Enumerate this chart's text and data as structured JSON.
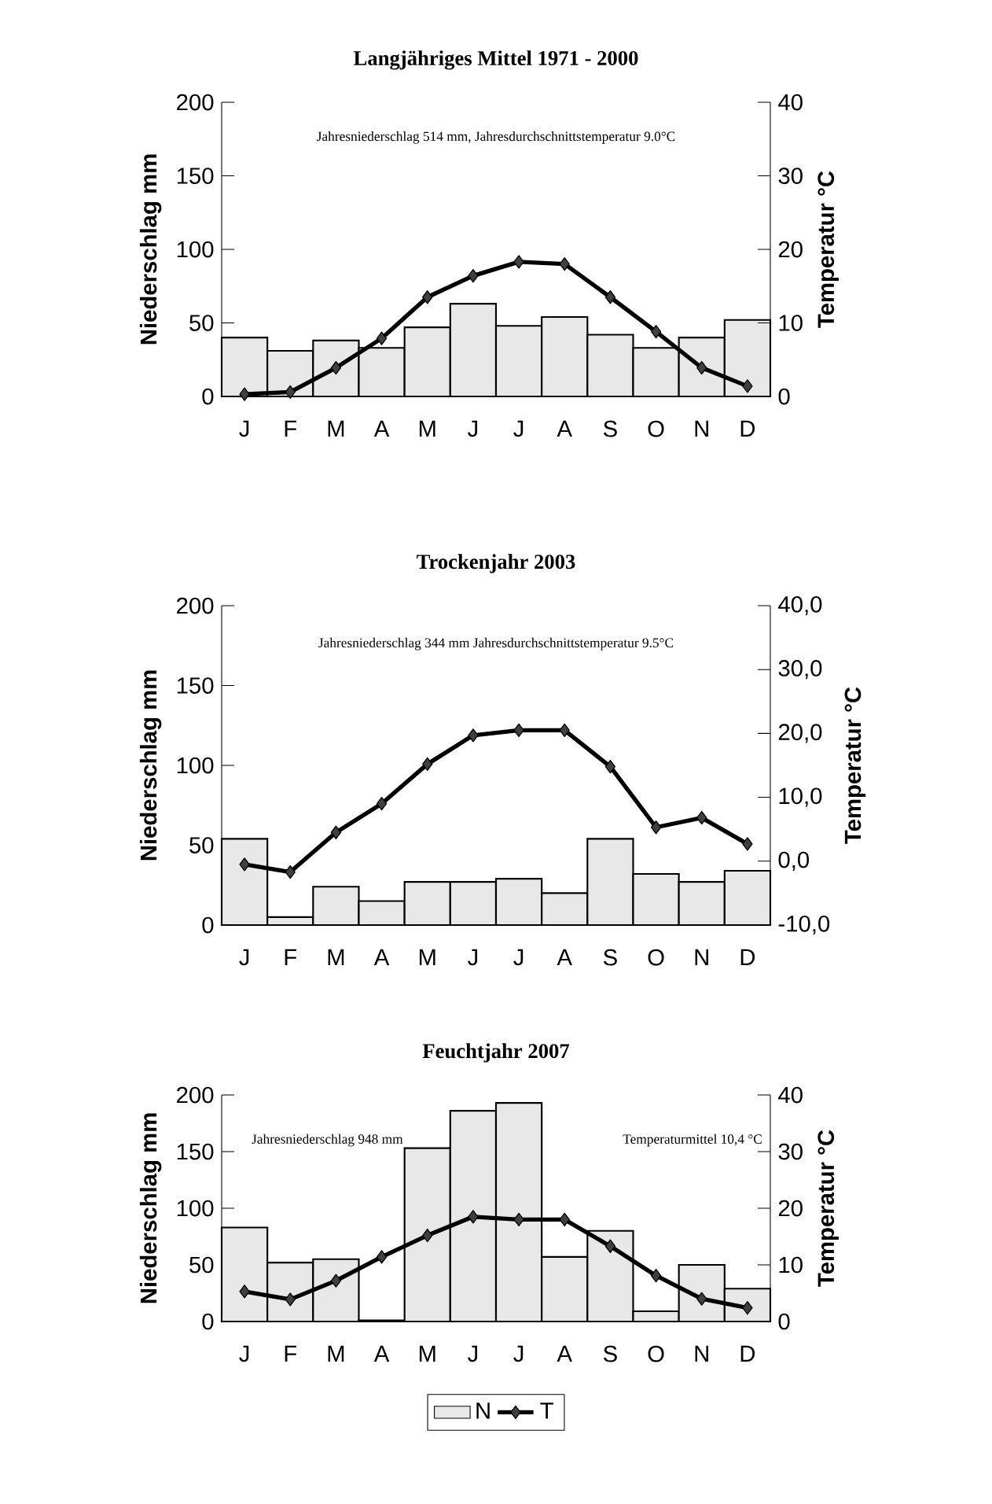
{
  "chart_data": [
    {
      "type": "bar",
      "title": "Langjähriges Mittel 1971 - 2000",
      "ylabel": "Niederschlag mm",
      "y2label": "Temperatur °C",
      "categories": [
        "J",
        "F",
        "M",
        "A",
        "M",
        "J",
        "J",
        "A",
        "S",
        "O",
        "N",
        "D"
      ],
      "series": [
        {
          "color": "#e8e8e8",
          "values": [
            40,
            31,
            38,
            33,
            47,
            63,
            48,
            54,
            42,
            33,
            40,
            52
          ]
        },
        {
          "type": "line",
          "axis": "y2",
          "color": "#000000",
          "values": [
            0.3,
            0.6,
            3.9,
            7.9,
            13.5,
            16.4,
            18.3,
            18.0,
            13.5,
            8.8,
            3.9,
            1.4
          ]
        }
      ],
      "ylim": [
        0,
        200
      ],
      "yticks": [
        0,
        50,
        100,
        150,
        200
      ],
      "y2lim": [
        0,
        40
      ],
      "y2ticks": [
        0,
        10,
        20,
        30,
        40
      ],
      "marker": "diamond",
      "annotations": [
        "Jahresniederschlag 514 mm, Jahresdurchschnittstemperatur 9.0°C"
      ]
    },
    {
      "type": "bar",
      "title": "Trockenjahr 2003",
      "ylabel": "Niederschlag mm",
      "y2label": "Temperatur °C",
      "categories": [
        "J",
        "F",
        "M",
        "A",
        "M",
        "J",
        "J",
        "A",
        "S",
        "O",
        "N",
        "D"
      ],
      "series": [
        {
          "color": "#e8e8e8",
          "values": [
            54,
            5,
            24,
            15,
            27,
            27,
            29,
            20,
            54,
            32,
            27,
            34
          ]
        },
        {
          "type": "line",
          "axis": "y2",
          "color": "#000000",
          "values": [
            -0.5,
            -1.7,
            4.5,
            9.0,
            15.2,
            19.7,
            20.5,
            20.5,
            14.8,
            5.3,
            6.8,
            2.7
          ]
        }
      ],
      "ylim": [
        0,
        200
      ],
      "yticks": [
        0,
        50,
        100,
        150,
        200
      ],
      "y2lim": [
        -10,
        40
      ],
      "y2ticks": [
        {
          "value": -10,
          "label": "-10,0"
        },
        {
          "value": 0,
          "label": "0,0"
        },
        {
          "value": 10,
          "label": "10,0"
        },
        {
          "value": 20,
          "label": "20,0"
        },
        {
          "value": 30,
          "label": "30,0"
        },
        {
          "value": 40,
          "label": "40,0"
        }
      ],
      "marker": "diamond",
      "annotations": [
        "Jahresniederschlag 344 mm Jahresdurchschnittstemperatur 9.5°C"
      ]
    },
    {
      "type": "bar",
      "title": "Feuchtjahr 2007",
      "ylabel": "Niederschlag mm",
      "y2label": "Temperatur °C",
      "categories": [
        "J",
        "F",
        "M",
        "A",
        "M",
        "J",
        "J",
        "A",
        "S",
        "O",
        "N",
        "D"
      ],
      "series": [
        {
          "name": "N",
          "color": "#e8e8e8",
          "values": [
            83,
            52,
            55,
            1,
            153,
            186,
            193,
            57,
            80,
            9,
            50,
            29
          ]
        },
        {
          "type": "line",
          "name": "T",
          "axis": "y2",
          "color": "#000000",
          "values": [
            5.3,
            3.9,
            7.2,
            11.4,
            15.2,
            18.5,
            18.0,
            18.0,
            13.3,
            8.1,
            4.0,
            2.4
          ]
        }
      ],
      "ylim": [
        0,
        200
      ],
      "yticks": [
        0,
        50,
        100,
        150,
        200
      ],
      "y2lim": [
        0,
        40
      ],
      "y2ticks": [
        0,
        10,
        20,
        30,
        40
      ],
      "marker": "diamond",
      "legend": "bottom",
      "annotations": [
        "Jahresniederschlag 948  mm",
        "Temperaturmittel 10,4 °C"
      ]
    }
  ]
}
